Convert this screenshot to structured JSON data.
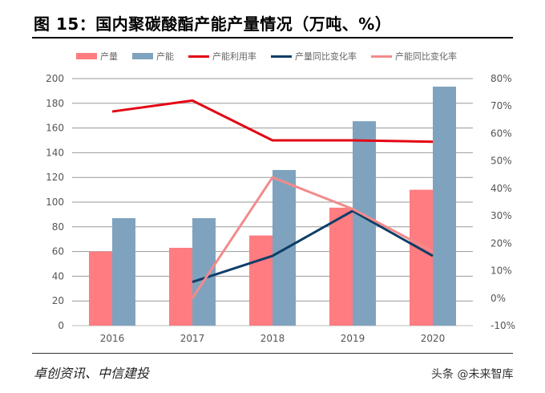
{
  "title": "图 15：国内聚碳酸酯产能产量情况（万吨、%）",
  "source": "卓创资讯、中信建投",
  "watermark": "头条 @未来智库",
  "chart_data": {
    "type": "bar+line",
    "categories": [
      "2016",
      "2017",
      "2018",
      "2019",
      "2020"
    ],
    "left_axis": {
      "ylim": [
        0,
        200
      ],
      "ticks": [
        "0",
        "20",
        "40",
        "60",
        "80",
        "100",
        "120",
        "140",
        "160",
        "180",
        "200"
      ]
    },
    "right_axis": {
      "ylim": [
        -10,
        80
      ],
      "ticks": [
        "-10%",
        "0%",
        "10%",
        "20%",
        "30%",
        "40%",
        "50%",
        "60%",
        "70%",
        "80%"
      ]
    },
    "grid": true,
    "legend": "top",
    "series": [
      {
        "name": "产量",
        "type": "bar",
        "axis": "left",
        "color": "#FF7C80",
        "values": [
          60,
          63,
          73,
          95.5,
          110
        ]
      },
      {
        "name": "产能",
        "type": "bar",
        "axis": "left",
        "color": "#7FA3BE",
        "values": [
          87,
          87,
          126,
          165.5,
          193.5
        ]
      },
      {
        "name": "产能利用率",
        "type": "line",
        "axis": "right",
        "color": "#E30613",
        "values": [
          68,
          72,
          57.5,
          57.5,
          57
        ]
      },
      {
        "name": "产量同比变化率",
        "type": "line",
        "axis": "right",
        "color": "#0E3E67",
        "values": [
          null,
          5.9,
          15.4,
          31.8,
          15.4
        ]
      },
      {
        "name": "产能同比变化率",
        "type": "line",
        "axis": "right",
        "color": "#F28B8B",
        "values": [
          null,
          0,
          44,
          32.5,
          17
        ]
      }
    ]
  }
}
